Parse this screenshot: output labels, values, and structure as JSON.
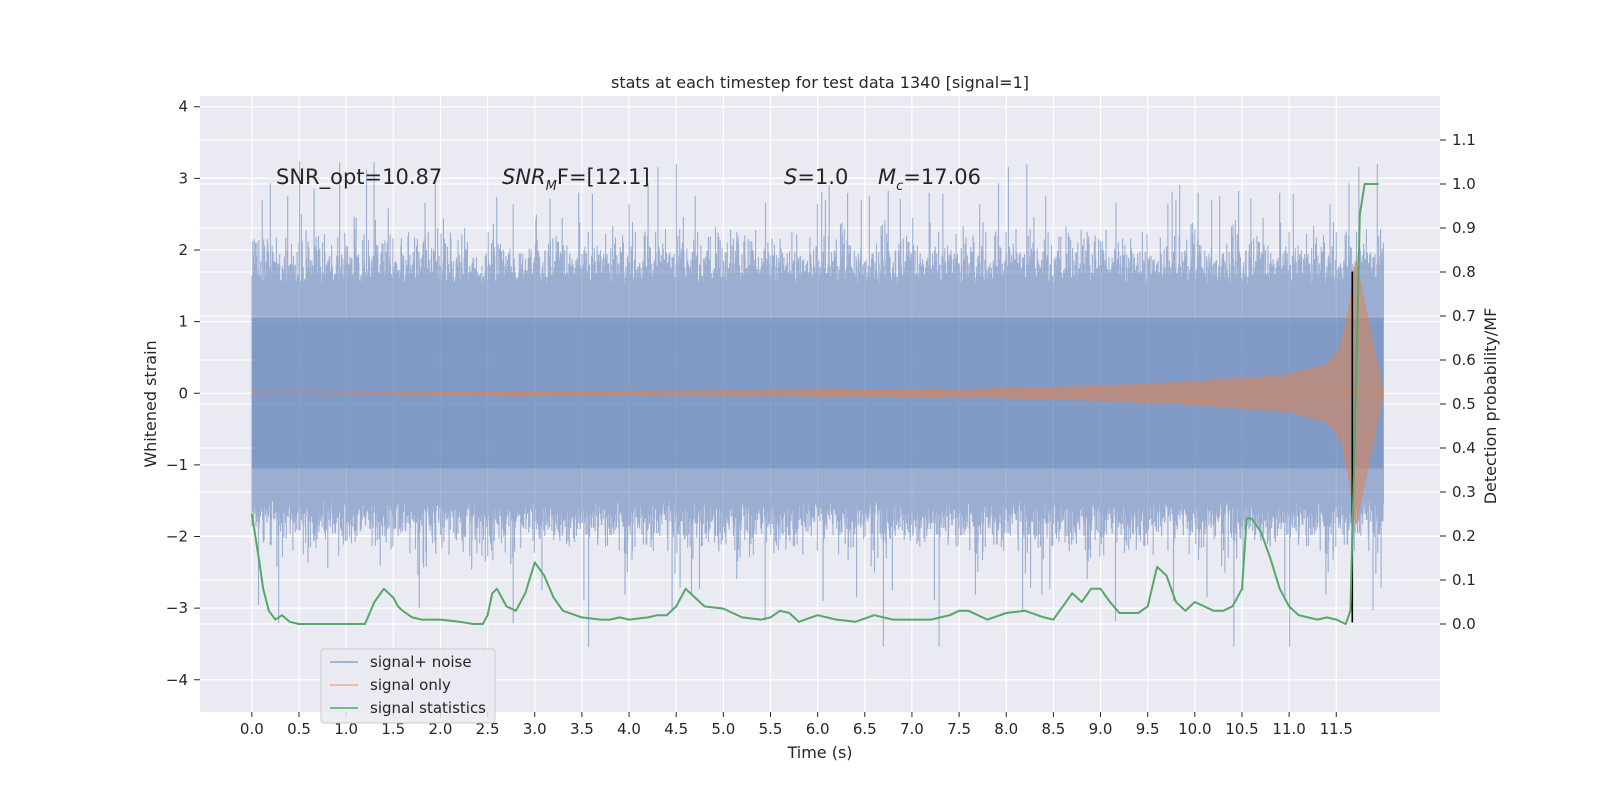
{
  "chart_data": {
    "type": "line",
    "title": "stats at each timestep for test data 1340 [signal=1]",
    "xlabel": "Time (s)",
    "ylabel_left": "Whitened strain",
    "ylabel_right": "Detection probability/MF",
    "xlim": [
      -0.55,
      12.6
    ],
    "ylim_left": [
      -4.45,
      4.15
    ],
    "ylim_right": [
      -0.2,
      1.2
    ],
    "xticks": [
      "0.0",
      "0.5",
      "1.0",
      "1.5",
      "2.0",
      "2.5",
      "3.0",
      "3.5",
      "4.0",
      "4.5",
      "5.0",
      "5.5",
      "6.0",
      "6.5",
      "7.0",
      "7.5",
      "8.0",
      "8.5",
      "9.0",
      "9.5",
      "10.0",
      "10.5",
      "11.0",
      "11.5"
    ],
    "xtick_values": [
      0,
      0.5,
      1,
      1.5,
      2,
      2.5,
      3,
      3.5,
      4,
      4.5,
      5,
      5.5,
      6,
      6.5,
      7,
      7.5,
      8,
      8.5,
      9,
      9.5,
      10,
      10.5,
      11,
      11.5
    ],
    "yticks_left": [
      "4",
      "3",
      "2",
      "1",
      "0",
      "−1",
      "−2",
      "−3",
      "−4"
    ],
    "ytick_values_left": [
      4,
      3,
      2,
      1,
      0,
      -1,
      -2,
      -3,
      -4
    ],
    "yticks_right": [
      "1.1",
      "1.0",
      "0.9",
      "0.8",
      "0.7",
      "0.6",
      "0.5",
      "0.4",
      "0.3",
      "0.2",
      "0.1",
      "0.0"
    ],
    "ytick_values_right": [
      1.1,
      1.0,
      0.9,
      0.8,
      0.7,
      0.6,
      0.5,
      0.4,
      0.3,
      0.2,
      0.1,
      0.0
    ],
    "grid": true,
    "legend_position": "lower-left",
    "annotations": {
      "snr_opt": "SNR_opt=10.87",
      "snr_mf_main": "SNR",
      "snr_mf_sub": "M",
      "snr_mf_rest": "F=[12.1]",
      "s_var": "S",
      "s_val": "=1.0",
      "mc_var": "M",
      "mc_sub": "c",
      "mc_val": "=17.06"
    },
    "series": [
      {
        "name": "signal+ noise",
        "color": "#4c72b0",
        "axis": "left",
        "x_range": [
          0.0,
          12.0
        ],
        "description_values": {
          "typical_band": [
            -1.7,
            1.7
          ],
          "max": 3.8,
          "min": -4.1
        }
      },
      {
        "name": "signal only",
        "color": "#dd8452",
        "axis": "left",
        "x_range": [
          0.0,
          12.0
        ],
        "envelope": {
          "x": [
            0,
            7.5,
            9,
            10,
            11,
            11.4,
            11.55,
            11.65,
            11.7,
            12.0
          ],
          "amp": [
            0.0,
            0.05,
            0.1,
            0.16,
            0.26,
            0.4,
            0.65,
            1.3,
            1.9,
            0.0
          ]
        }
      },
      {
        "name": "signal statistics",
        "color": "#55a868",
        "axis": "right",
        "x": [
          0.0,
          0.08,
          0.12,
          0.18,
          0.25,
          0.32,
          0.4,
          0.5,
          0.6,
          0.8,
          1.0,
          1.2,
          1.3,
          1.4,
          1.5,
          1.55,
          1.6,
          1.7,
          1.8,
          1.9,
          2.0,
          2.2,
          2.35,
          2.45,
          2.5,
          2.55,
          2.6,
          2.7,
          2.8,
          2.9,
          3.0,
          3.1,
          3.2,
          3.3,
          3.5,
          3.7,
          3.8,
          3.9,
          4.0,
          4.2,
          4.3,
          4.4,
          4.5,
          4.6,
          4.7,
          4.8,
          5.0,
          5.2,
          5.4,
          5.5,
          5.6,
          5.7,
          5.8,
          6.0,
          6.2,
          6.4,
          6.6,
          6.8,
          7.0,
          7.2,
          7.4,
          7.5,
          7.6,
          7.8,
          8.0,
          8.2,
          8.4,
          8.5,
          8.6,
          8.7,
          8.8,
          8.9,
          9.0,
          9.1,
          9.2,
          9.4,
          9.5,
          9.6,
          9.7,
          9.8,
          9.9,
          10.0,
          10.1,
          10.2,
          10.3,
          10.4,
          10.5,
          10.55,
          10.6,
          10.7,
          10.8,
          10.9,
          11.0,
          11.1,
          11.2,
          11.3,
          11.4,
          11.5,
          11.6,
          11.65,
          11.7,
          11.75,
          11.8,
          11.85,
          11.95
        ],
        "values": [
          0.25,
          0.14,
          0.08,
          0.03,
          0.01,
          0.02,
          0.005,
          0.0,
          0.0,
          0.0,
          0.0,
          0.0,
          0.05,
          0.08,
          0.06,
          0.04,
          0.03,
          0.015,
          0.01,
          0.01,
          0.01,
          0.005,
          0.0,
          0.0,
          0.02,
          0.07,
          0.08,
          0.04,
          0.03,
          0.07,
          0.14,
          0.11,
          0.06,
          0.03,
          0.015,
          0.01,
          0.01,
          0.015,
          0.01,
          0.015,
          0.02,
          0.02,
          0.04,
          0.08,
          0.06,
          0.04,
          0.035,
          0.015,
          0.01,
          0.015,
          0.03,
          0.025,
          0.005,
          0.02,
          0.01,
          0.005,
          0.02,
          0.01,
          0.01,
          0.01,
          0.02,
          0.03,
          0.03,
          0.01,
          0.025,
          0.03,
          0.015,
          0.01,
          0.04,
          0.07,
          0.05,
          0.08,
          0.08,
          0.05,
          0.025,
          0.025,
          0.04,
          0.13,
          0.11,
          0.05,
          0.03,
          0.05,
          0.04,
          0.03,
          0.03,
          0.04,
          0.08,
          0.24,
          0.24,
          0.21,
          0.15,
          0.08,
          0.04,
          0.02,
          0.015,
          0.01,
          0.015,
          0.01,
          0.0,
          0.03,
          0.45,
          0.93,
          1.0,
          1.0,
          1.0
        ]
      }
    ],
    "marker_line": {
      "x": 11.67,
      "color": "#000000",
      "y_range_left": [
        -3.2,
        1.7
      ]
    }
  }
}
